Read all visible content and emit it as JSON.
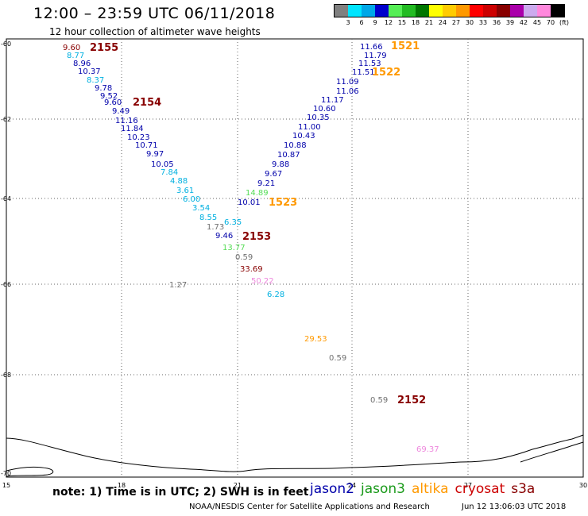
{
  "header": {
    "title": "12:00 – 23:59 UTC 06/11/2018",
    "subtitle": "12 hour collection of altimeter wave heights"
  },
  "color_scale": {
    "labels": [
      "3",
      "6",
      "9",
      "12",
      "15",
      "18",
      "21",
      "24",
      "27",
      "30",
      "33",
      "36",
      "39",
      "42",
      "45",
      "70",
      "(ft)"
    ],
    "colors": [
      "#808080",
      "#00e5ff",
      "#00a8e8",
      "#0000cc",
      "#55ee55",
      "#22bb22",
      "#007700",
      "#ffff00",
      "#ffcc00",
      "#ff9900",
      "#ff0000",
      "#cc0000",
      "#880000",
      "#aa00aa",
      "#ccaaee",
      "#ff88dd",
      "#000000"
    ]
  },
  "axes": {
    "lat_labels": [
      "-60",
      "-62",
      "-64",
      "-66",
      "-68",
      "-70"
    ],
    "lon_labels": [
      "15",
      "18",
      "21",
      "24",
      "27",
      "30"
    ]
  },
  "satellite_colors": {
    "jason2": "#0000aa",
    "jason3": "#1a9a1a",
    "altika": "#ff9900",
    "cryosat": "#cc0000",
    "s3a": "#880000",
    "gray": "#707070",
    "cyan": "#00b0e0",
    "green": "#55dd55",
    "pink": "#ee88dd"
  },
  "observations": [
    {
      "v": "9.60",
      "c": "s3a"
    },
    {
      "v": "8.77",
      "c": "cyan"
    },
    {
      "v": "8.96",
      "c": "jason2"
    },
    {
      "v": "10.37",
      "c": "jason2"
    },
    {
      "v": "8.37",
      "c": "cyan"
    },
    {
      "v": "9.78",
      "c": "jason2"
    },
    {
      "v": "9.52",
      "c": "jason2"
    },
    {
      "v": "9.60",
      "c": "jason2"
    },
    {
      "v": "9.49",
      "c": "jason2"
    },
    {
      "v": "11.16",
      "c": "jason2"
    },
    {
      "v": "11.84",
      "c": "jason2"
    },
    {
      "v": "10.23",
      "c": "jason2"
    },
    {
      "v": "10.71",
      "c": "jason2"
    },
    {
      "v": "9.97",
      "c": "jason2"
    },
    {
      "v": "10.05",
      "c": "jason2"
    },
    {
      "v": "7.84",
      "c": "cyan"
    },
    {
      "v": "4.88",
      "c": "cyan"
    },
    {
      "v": "3.61",
      "c": "cyan"
    },
    {
      "v": "6.00",
      "c": "cyan"
    },
    {
      "v": "3.54",
      "c": "cyan"
    },
    {
      "v": "8.55",
      "c": "cyan"
    },
    {
      "v": "6.35",
      "c": "cyan"
    },
    {
      "v": "1.73",
      "c": "gray"
    },
    {
      "v": "9.46",
      "c": "jason2"
    },
    {
      "v": "13.77",
      "c": "green"
    },
    {
      "v": "0.59",
      "c": "gray"
    },
    {
      "v": "33.69",
      "c": "s3a"
    },
    {
      "v": "50.22",
      "c": "pink"
    },
    {
      "v": "6.28",
      "c": "cyan"
    },
    {
      "v": "1.27",
      "c": "gray"
    },
    {
      "v": "11.66",
      "c": "jason2"
    },
    {
      "v": "11.79",
      "c": "jason2"
    },
    {
      "v": "11.53",
      "c": "jason2"
    },
    {
      "v": "11.51",
      "c": "jason2"
    },
    {
      "v": "11.09",
      "c": "jason2"
    },
    {
      "v": "11.06",
      "c": "jason2"
    },
    {
      "v": "11.17",
      "c": "jason2"
    },
    {
      "v": "10.60",
      "c": "jason2"
    },
    {
      "v": "10.35",
      "c": "jason2"
    },
    {
      "v": "11.00",
      "c": "jason2"
    },
    {
      "v": "10.43",
      "c": "jason2"
    },
    {
      "v": "10.88",
      "c": "jason2"
    },
    {
      "v": "10.87",
      "c": "jason2"
    },
    {
      "v": "9.88",
      "c": "jason2"
    },
    {
      "v": "9.67",
      "c": "jason2"
    },
    {
      "v": "9.21",
      "c": "jason2"
    },
    {
      "v": "14.89",
      "c": "green"
    },
    {
      "v": "10.01",
      "c": "jason2"
    },
    {
      "v": "29.53",
      "c": "altika"
    },
    {
      "v": "0.59",
      "c": "gray"
    },
    {
      "v": "0.59",
      "c": "gray"
    },
    {
      "v": "69.37",
      "c": "pink"
    }
  ],
  "pass_labels": [
    {
      "t": "2155",
      "c": "s3a"
    },
    {
      "t": "2154",
      "c": "s3a"
    },
    {
      "t": "2153",
      "c": "s3a"
    },
    {
      "t": "1521",
      "c": "altika"
    },
    {
      "t": "1522",
      "c": "altika"
    },
    {
      "t": "1523",
      "c": "altika"
    },
    {
      "t": "2152",
      "c": "s3a"
    }
  ],
  "footer": {
    "note": "note:  1) Time is in UTC;  2) SWH is in feet",
    "legend": [
      {
        "name": "jason2",
        "c": "jason2"
      },
      {
        "name": "jason3",
        "c": "jason3"
      },
      {
        "name": "altika",
        "c": "altika"
      },
      {
        "name": "cryosat",
        "c": "cryosat"
      },
      {
        "name": "s3a",
        "c": "s3a"
      }
    ],
    "credit": "NOAA/NESDIS Center for Satellite Applications and Research",
    "timestamp": "Jun 12 13:06:03 UTC 2018"
  }
}
